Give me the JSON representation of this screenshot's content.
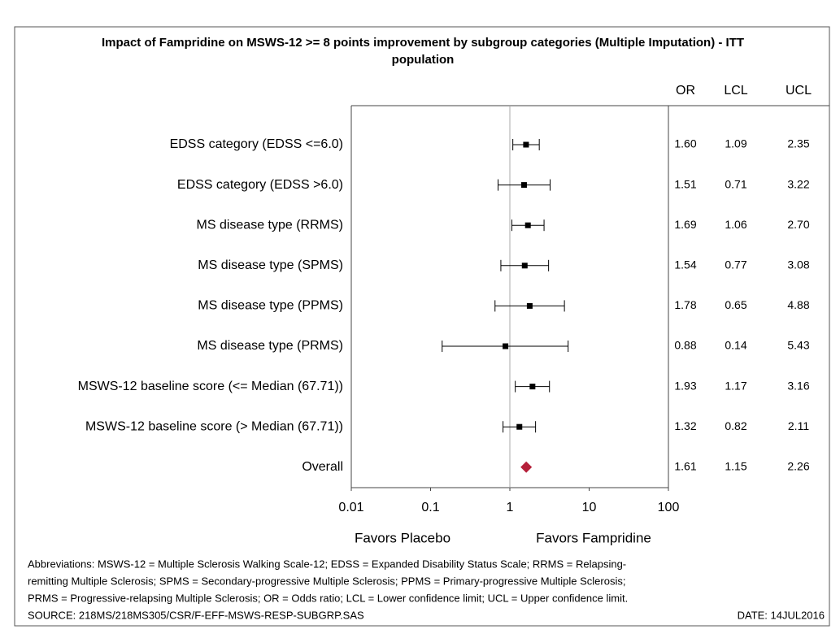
{
  "chart_data": {
    "type": "forest",
    "title": "Impact of Fampridine on MSWS-12 >= 8 points improvement by subgroup categories (Multiple Imputation) - ITT",
    "title_line2": "population",
    "categories": [
      "EDSS category (EDSS <=6.0)",
      "EDSS category (EDSS >6.0)",
      "MS disease type (RRMS)",
      "MS disease type (SPMS)",
      "MS disease type (PPMS)",
      "MS disease type (PRMS)",
      "MSWS-12 baseline score (<= Median (67.71))",
      "MSWS-12 baseline score (> Median (67.71))",
      "Overall"
    ],
    "series": [
      {
        "name": "OR",
        "color": "#000000",
        "values": [
          1.6,
          1.51,
          1.69,
          1.54,
          1.78,
          0.88,
          1.93,
          1.32,
          1.61
        ],
        "value_labels": [
          "1.60",
          "1.51",
          "1.69",
          "1.54",
          "1.78",
          "0.88",
          "1.93",
          "1.32",
          "1.61"
        ]
      },
      {
        "name": "LCL",
        "values": [
          1.09,
          0.71,
          1.06,
          0.77,
          0.65,
          0.14,
          1.17,
          0.82,
          1.15
        ],
        "value_labels": [
          "1.09",
          "0.71",
          "1.06",
          "0.77",
          "0.65",
          "0.14",
          "1.17",
          "0.82",
          "1.15"
        ]
      },
      {
        "name": "UCL",
        "values": [
          2.35,
          3.22,
          2.7,
          3.08,
          4.88,
          5.43,
          3.16,
          2.11,
          2.26
        ],
        "value_labels": [
          "2.35",
          "3.22",
          "2.70",
          "3.08",
          "4.88",
          "5.43",
          "3.16",
          "2.11",
          "2.26"
        ]
      }
    ],
    "summary_color": "#b5203a",
    "xscale": "log",
    "xlim": [
      0.01,
      100
    ],
    "xticks": [
      0.01,
      0.1,
      1,
      10,
      100
    ],
    "reference_line": 1,
    "favors_left": "Favors Placebo",
    "favors_right": "Favors Fampridine",
    "notes": [
      "Abbreviations: MSWS-12 = Multiple Sclerosis Walking Scale-12; EDSS = Expanded Disability Status Scale; RRMS = Relapsing-",
      "remitting Multiple Sclerosis; SPMS = Secondary-progressive Multiple Sclerosis; PPMS = Primary-progressive Multiple Sclerosis;",
      "PRMS = Progressive-relapsing Multiple Sclerosis; OR = Odds ratio; LCL = Lower confidence limit; UCL = Upper confidence limit."
    ],
    "source": "SOURCE: 218MS/218MS305/CSR/F-EFF-MSWS-RESP-SUBGRP.SAS",
    "date": "DATE: 14JUL2016"
  }
}
